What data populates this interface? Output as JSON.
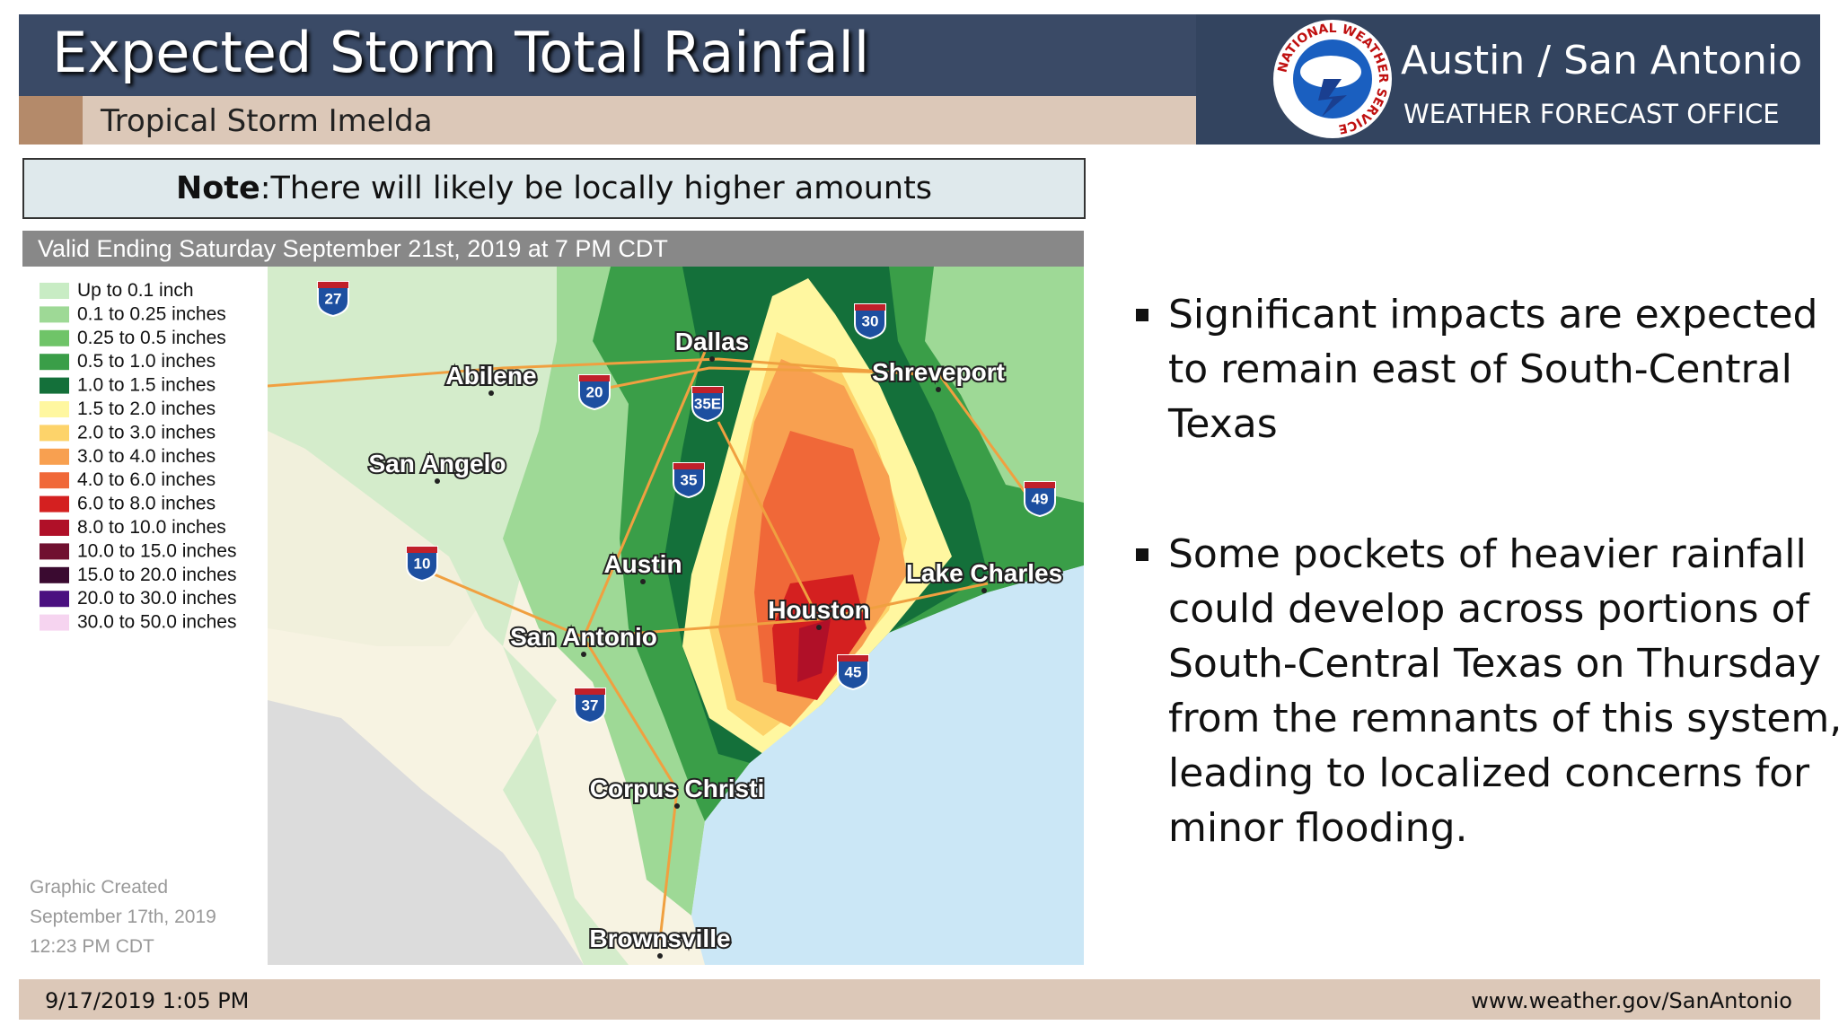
{
  "header": {
    "title": "Expected Storm Total Rainfall",
    "subtitle": "Tropical Storm Imelda",
    "office": "Austin / San Antonio",
    "office_type": "WEATHER FORECAST OFFICE",
    "logo_text": "NATIONAL WEATHER SERVICE"
  },
  "note": {
    "label": "Note",
    "text": ":There will likely be locally higher amounts"
  },
  "map": {
    "valid": "Valid Ending Saturday September 21st, 2019 at 7 PM CDT",
    "legend": [
      {
        "label": "Up to 0.1 inch",
        "color": "#c8ecc4"
      },
      {
        "label": "0.1 to 0.25 inches",
        "color": "#9ed996"
      },
      {
        "label": "0.25 to 0.5 inches",
        "color": "#6fc468"
      },
      {
        "label": "0.5 to 1.0 inches",
        "color": "#3a9e48"
      },
      {
        "label": "1.0 to 1.5 inches",
        "color": "#14703a"
      },
      {
        "label": "1.5 to 2.0 inches",
        "color": "#fff7a0"
      },
      {
        "label": "2.0 to 3.0 inches",
        "color": "#fdd36a"
      },
      {
        "label": "3.0 to 4.0 inches",
        "color": "#f8a050"
      },
      {
        "label": "4.0 to 6.0 inches",
        "color": "#f06838"
      },
      {
        "label": "6.0 to 8.0 inches",
        "color": "#d42020"
      },
      {
        "label": "8.0 to 10.0 inches",
        "color": "#b01028"
      },
      {
        "label": "10.0 to 15.0 inches",
        "color": "#701030"
      },
      {
        "label": "15.0 to 20.0 inches",
        "color": "#3a0a30"
      },
      {
        "label": "20.0 to 30.0 inches",
        "color": "#4a1080"
      },
      {
        "label": "30.0 to 50.0 inches",
        "color": "#f6d4f0"
      }
    ],
    "created": [
      "Graphic Created",
      "September 17th, 2019",
      "12:23 PM CDT"
    ],
    "cities": [
      "Dallas",
      "Abilene",
      "Shreveport",
      "San Angelo",
      "Austin",
      "Lake Charles",
      "Houston",
      "San Antonio",
      "Corpus Christi",
      "Brownsville"
    ],
    "interstates": [
      "27",
      "30",
      "20",
      "35E",
      "35",
      "49",
      "10",
      "45",
      "37"
    ]
  },
  "bullets": [
    "Significant impacts are expected to remain east of South-Central Texas",
    "Some pockets of heavier rainfall could develop across portions of South-Central Texas on Thursday from the remnants of this system, leading to localized concerns for minor flooding."
  ],
  "footer": {
    "date": "9/17/2019 1:05 PM",
    "url": "www.weather.gov/SanAntonio"
  }
}
